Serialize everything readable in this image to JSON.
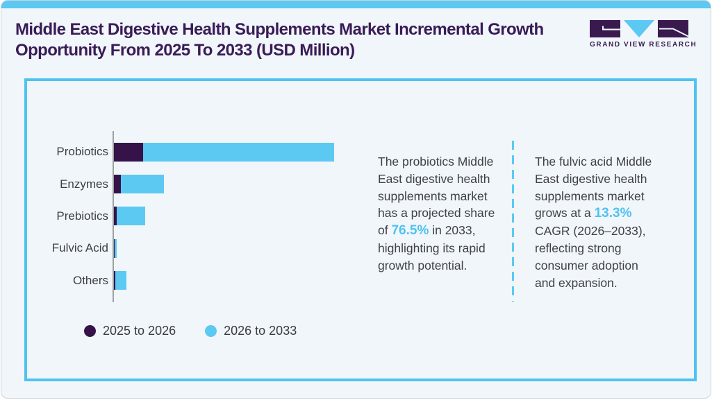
{
  "page": {
    "title": "Middle East Digestive Health Supplements Market Incremental Growth Opportunity From 2025 To 2033 (USD Million)"
  },
  "brand": {
    "logo_text": "GRAND VIEW RESEARCH"
  },
  "colors": {
    "accent_blue": "#5BC9F2",
    "dark_purple": "#351349",
    "title_purple": "#3A1B56",
    "card_border": "#4EC3F0",
    "body_text": "#414049",
    "background": "#F0F6FA",
    "axis_gray": "#9EA0A3"
  },
  "chart_data": {
    "type": "bar",
    "orientation": "horizontal",
    "stacked": true,
    "title": "Middle East Digestive Health Supplements Market Incremental Growth Opportunity From 2025 To 2033 (USD Million)",
    "categories": [
      "Probiotics",
      "Enzymes",
      "Prebiotics",
      "Fulvic Acid",
      "Others"
    ],
    "series": [
      {
        "name": "2025 to 2026",
        "color": "#351349",
        "values": [
          42,
          10,
          4,
          1,
          2
        ]
      },
      {
        "name": "2026 to 2033",
        "color": "#5BC9F2",
        "values": [
          275,
          62,
          41,
          3,
          16
        ]
      }
    ],
    "value_axis_labels_shown": false,
    "units": "USD Million (relative segment lengths, no numeric axis shown)",
    "legend_position": "bottom-left",
    "grid": false
  },
  "insights": [
    {
      "pre": "The probiotics Middle East digestive health supplements market has a projected share of ",
      "accent": "76.5%",
      "post": " in 2033, highlighting its rapid growth potential."
    },
    {
      "pre": "The fulvic acid Middle East digestive health supplements market grows at a ",
      "accent": "13.3%",
      "post": " CAGR (2026–2033), reflecting strong consumer adoption and expansion."
    }
  ]
}
